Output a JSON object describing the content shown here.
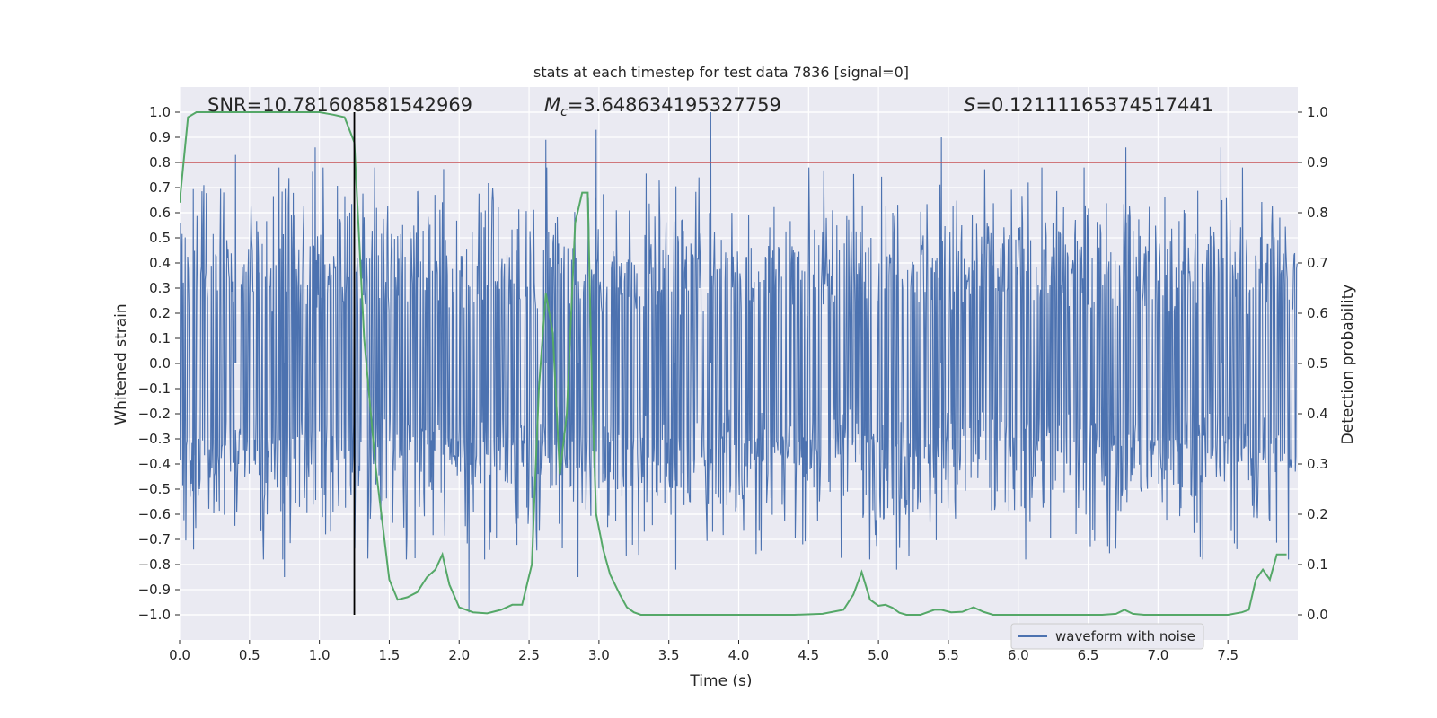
{
  "chart_data": {
    "type": "line",
    "title": "stats at each timestep for test data 7836 [signal=0]",
    "xlabel": "Time (s)",
    "ylabel_left": "Whitened strain",
    "ylabel_right": "Detection probability",
    "xlim": [
      0.0,
      8.0
    ],
    "ylim_left": [
      -1.1,
      1.1
    ],
    "ylim_right": [
      -0.05,
      1.05
    ],
    "grid": true,
    "x_ticks": [
      "0.0",
      "0.5",
      "1.0",
      "1.5",
      "2.0",
      "2.5",
      "3.0",
      "3.5",
      "4.0",
      "4.5",
      "5.0",
      "5.5",
      "6.0",
      "6.5",
      "7.0",
      "7.5"
    ],
    "x_tick_values": [
      0.0,
      0.5,
      1.0,
      1.5,
      2.0,
      2.5,
      3.0,
      3.5,
      4.0,
      4.5,
      5.0,
      5.5,
      6.0,
      6.5,
      7.0,
      7.5
    ],
    "y_left_ticks": [
      "1.0",
      "0.9",
      "0.8",
      "0.7",
      "0.6",
      "0.5",
      "0.4",
      "0.3",
      "0.2",
      "0.1",
      "0.0",
      "−0.1",
      "−0.2",
      "−0.3",
      "−0.4",
      "−0.5",
      "−0.6",
      "−0.7",
      "−0.8",
      "−0.9",
      "−1.0"
    ],
    "y_left_tick_values": [
      1.0,
      0.9,
      0.8,
      0.7,
      0.6,
      0.5,
      0.4,
      0.3,
      0.2,
      0.1,
      0.0,
      -0.1,
      -0.2,
      -0.3,
      -0.4,
      -0.5,
      -0.6,
      -0.7,
      -0.8,
      -0.9,
      -1.0
    ],
    "y_right_ticks": [
      "1.0",
      "0.9",
      "0.8",
      "0.7",
      "0.6",
      "0.5",
      "0.4",
      "0.3",
      "0.2",
      "0.1",
      "0.0"
    ],
    "y_right_tick_values": [
      1.0,
      0.9,
      0.8,
      0.7,
      0.6,
      0.5,
      0.4,
      0.3,
      0.2,
      0.1,
      0.0
    ],
    "annotations": {
      "snr": "SNR=10.781608581542969",
      "mc_symbol": "M",
      "mc_sub": "c",
      "mc_value": "=3.648634195327759",
      "s_symbol": "S",
      "s_value": "=0.12111165374517441"
    },
    "threshold": {
      "value": 0.9,
      "axis": "right",
      "color": "#c44e52"
    },
    "marker_line": {
      "x": 1.25,
      "color": "#000000"
    },
    "waveform": {
      "name": "waveform with noise",
      "color": "#4c72b0",
      "duration": 8.0,
      "samples": 1800,
      "envelope": 0.62,
      "seed": 7836,
      "spikes": [
        {
          "t": 0.4,
          "v": 0.83
        },
        {
          "t": 0.97,
          "v": 0.86
        },
        {
          "t": 2.62,
          "v": 0.89
        },
        {
          "t": 2.98,
          "v": 0.93
        },
        {
          "t": 3.8,
          "v": 1.0
        },
        {
          "t": 5.45,
          "v": 0.9
        },
        {
          "t": 6.77,
          "v": 0.86
        },
        {
          "t": 7.45,
          "v": 0.86
        },
        {
          "t": 0.75,
          "v": -0.85
        },
        {
          "t": 2.07,
          "v": -0.99
        },
        {
          "t": 2.85,
          "v": -0.85
        },
        {
          "t": 3.55,
          "v": -0.82
        },
        {
          "t": 5.13,
          "v": -0.82
        },
        {
          "t": 0.1,
          "v": -0.74
        }
      ]
    },
    "probability": {
      "name": "detection probability",
      "color": "#55a868",
      "x": [
        0.0,
        0.06,
        0.12,
        0.2,
        0.3,
        0.5,
        0.7,
        0.9,
        1.0,
        1.1,
        1.18,
        1.25,
        1.32,
        1.4,
        1.5,
        1.56,
        1.63,
        1.7,
        1.77,
        1.83,
        1.88,
        1.93,
        2.0,
        2.05,
        2.1,
        2.2,
        2.3,
        2.38,
        2.45,
        2.52,
        2.57,
        2.62,
        2.67,
        2.72,
        2.77,
        2.83,
        2.88,
        2.92,
        2.95,
        2.98,
        3.03,
        3.08,
        3.15,
        3.2,
        3.25,
        3.3,
        3.4,
        3.6,
        3.8,
        4.0,
        4.2,
        4.4,
        4.6,
        4.75,
        4.82,
        4.88,
        4.94,
        5.0,
        5.05,
        5.1,
        5.15,
        5.2,
        5.3,
        5.4,
        5.45,
        5.52,
        5.6,
        5.68,
        5.75,
        5.82,
        6.0,
        6.2,
        6.4,
        6.6,
        6.7,
        6.76,
        6.82,
        6.9,
        7.1,
        7.3,
        7.5,
        7.6,
        7.65,
        7.7,
        7.75,
        7.8,
        7.85,
        7.92
      ],
      "y": [
        0.82,
        0.99,
        1.0,
        1.0,
        1.0,
        1.0,
        1.0,
        1.0,
        1.0,
        0.995,
        0.99,
        0.94,
        0.55,
        0.3,
        0.07,
        0.03,
        0.035,
        0.045,
        0.075,
        0.09,
        0.12,
        0.06,
        0.015,
        0.01,
        0.005,
        0.003,
        0.01,
        0.02,
        0.02,
        0.1,
        0.45,
        0.64,
        0.56,
        0.28,
        0.4,
        0.78,
        0.84,
        0.84,
        0.45,
        0.2,
        0.13,
        0.08,
        0.04,
        0.015,
        0.005,
        0.0,
        0.0,
        0.0,
        0.0,
        0.0,
        0.0,
        0.0,
        0.002,
        0.01,
        0.04,
        0.085,
        0.03,
        0.018,
        0.02,
        0.014,
        0.004,
        0.0,
        0.0,
        0.01,
        0.01,
        0.005,
        0.006,
        0.015,
        0.006,
        0.0,
        0.0,
        0.0,
        0.0,
        0.0,
        0.002,
        0.01,
        0.002,
        0.0,
        0.0,
        0.0,
        0.0,
        0.005,
        0.01,
        0.07,
        0.09,
        0.07,
        0.12,
        0.12
      ]
    },
    "legend": {
      "position": "lower-center",
      "entries": [
        "waveform with noise"
      ]
    }
  }
}
